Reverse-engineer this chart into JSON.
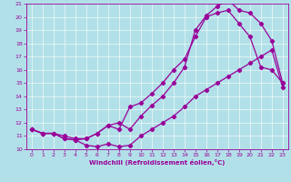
{
  "xlabel": "Windchill (Refroidissement éolien,°C)",
  "ylabel": "",
  "bg_color": "#b2e0e8",
  "line_color": "#990099",
  "xlim": [
    -0.5,
    23.5
  ],
  "ylim": [
    10,
    21
  ],
  "xticks": [
    0,
    1,
    2,
    3,
    4,
    5,
    6,
    7,
    8,
    9,
    10,
    11,
    12,
    13,
    14,
    15,
    16,
    17,
    18,
    19,
    20,
    21,
    22,
    23
  ],
  "yticks": [
    10,
    11,
    12,
    13,
    14,
    15,
    16,
    17,
    18,
    19,
    20,
    21
  ],
  "curve1_x": [
    0,
    1,
    2,
    3,
    4,
    5,
    6,
    7,
    8,
    9,
    10,
    11,
    12,
    13,
    14,
    15,
    16,
    17,
    18,
    19,
    20,
    21,
    22,
    23
  ],
  "curve1_y": [
    11.5,
    11.2,
    11.2,
    10.8,
    10.7,
    10.3,
    10.2,
    10.4,
    10.2,
    10.3,
    11.0,
    11.5,
    12.0,
    12.5,
    13.2,
    14.0,
    14.5,
    15.0,
    15.5,
    16.0,
    16.5,
    17.0,
    17.5,
    14.7
  ],
  "curve2_x": [
    0,
    1,
    2,
    3,
    4,
    5,
    6,
    7,
    8,
    9,
    10,
    11,
    12,
    13,
    14,
    15,
    16,
    17,
    18,
    19,
    20,
    21,
    22,
    23
  ],
  "curve2_y": [
    11.5,
    11.2,
    11.2,
    10.8,
    10.7,
    10.8,
    11.2,
    11.8,
    11.5,
    13.2,
    13.5,
    14.2,
    15.0,
    16.0,
    16.8,
    18.5,
    20.0,
    20.3,
    20.5,
    19.5,
    18.5,
    16.2,
    16.0,
    15.0
  ],
  "curve3_x": [
    0,
    1,
    2,
    3,
    4,
    5,
    6,
    7,
    8,
    9,
    10,
    11,
    12,
    13,
    14,
    15,
    16,
    17,
    18,
    19,
    20,
    21,
    22,
    23
  ],
  "curve3_y": [
    11.5,
    11.2,
    11.2,
    11.0,
    10.8,
    10.8,
    11.2,
    11.8,
    12.0,
    11.5,
    12.5,
    13.3,
    14.0,
    15.0,
    16.2,
    19.0,
    20.1,
    20.8,
    21.3,
    20.5,
    20.3,
    19.5,
    18.2,
    15.0
  ]
}
